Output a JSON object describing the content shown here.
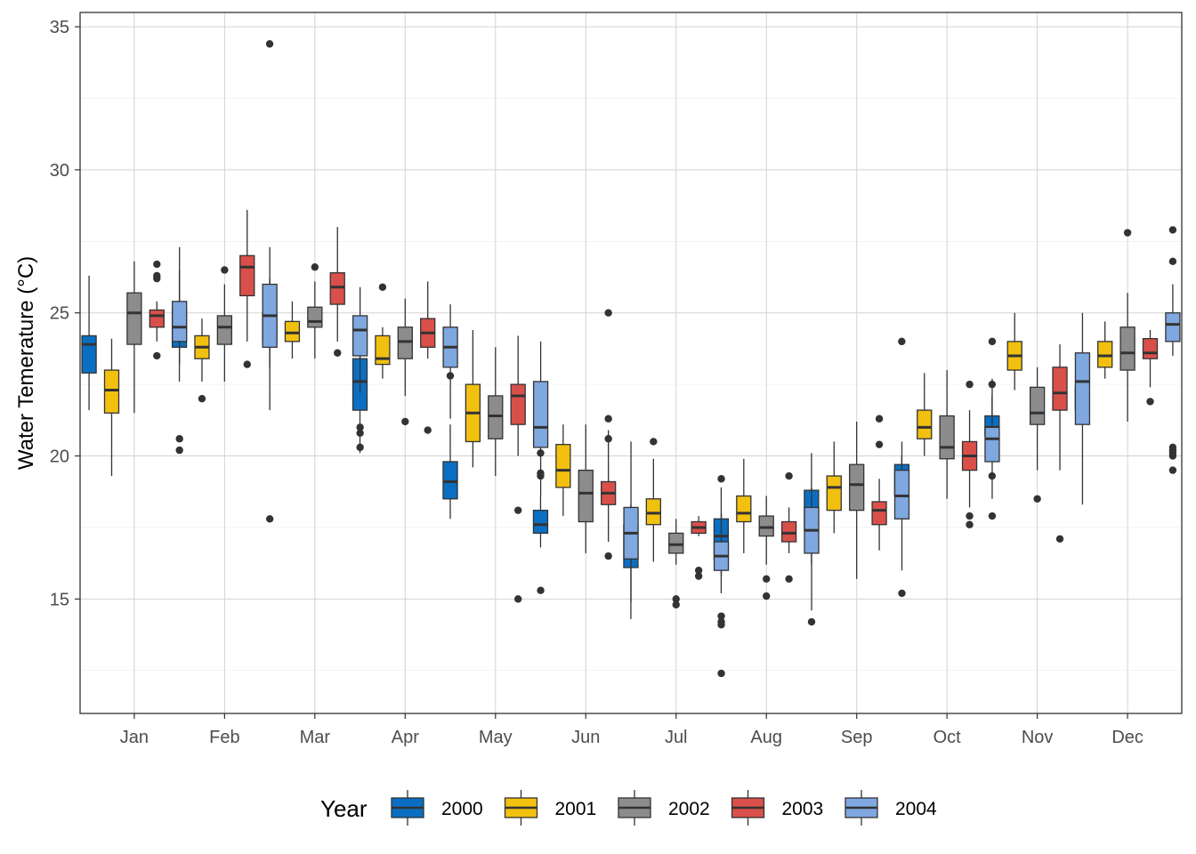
{
  "chart_data": {
    "type": "box",
    "ylabel": "Water Temerature (°C)",
    "xlabel": "",
    "ylim": [
      11,
      35.5
    ],
    "yticks": [
      15,
      20,
      25,
      30,
      35
    ],
    "grid": true,
    "legend": {
      "title": "Year",
      "position": "bottom"
    },
    "categories": [
      "Jan",
      "Feb",
      "Mar",
      "Apr",
      "May",
      "Jun",
      "Jul",
      "Aug",
      "Sep",
      "Oct",
      "Nov",
      "Dec"
    ],
    "series": [
      {
        "name": "2000",
        "color": "#0a6fc2",
        "boxes": [
          {
            "whisker_low": 21.6,
            "q1": 22.9,
            "median": 23.9,
            "q3": 24.2,
            "whisker_high": 26.3,
            "outliers": []
          },
          {
            "whisker_low": 22.6,
            "q1": 23.8,
            "median": 24.6,
            "q3": 25.1,
            "whisker_high": 26.5,
            "outliers": []
          },
          {
            "whisker_low": 23.1,
            "q1": 24.0,
            "median": 24.4,
            "q3": 25.0,
            "whisker_high": 26.2,
            "outliers": [
              34.4
            ]
          },
          {
            "whisker_low": 20.1,
            "q1": 21.6,
            "median": 22.6,
            "q3": 23.4,
            "whisker_high": 24.3,
            "outliers": []
          },
          {
            "whisker_low": 17.8,
            "q1": 18.5,
            "median": 19.1,
            "q3": 19.8,
            "whisker_high": 21.1,
            "outliers": [
              22.8
            ]
          },
          {
            "whisker_low": 16.8,
            "q1": 17.3,
            "median": 17.6,
            "q3": 18.1,
            "whisker_high": 18.6,
            "outliers": [
              20.1,
              19.4,
              19.3
            ]
          },
          {
            "whisker_low": 14.3,
            "q1": 16.1,
            "median": 16.8,
            "q3": 17.6,
            "whisker_high": 18.3,
            "outliers": []
          },
          {
            "whisker_low": 15.2,
            "q1": 16.4,
            "median": 17.2,
            "q3": 17.8,
            "whisker_high": 18.9,
            "outliers": []
          },
          {
            "whisker_low": 16.2,
            "q1": 17.4,
            "median": 18.0,
            "q3": 18.8,
            "whisker_high": 20.1,
            "outliers": []
          },
          {
            "whisker_low": 17.9,
            "q1": 18.6,
            "median": 19.2,
            "q3": 19.7,
            "whisker_high": 20.0,
            "outliers": [
              24.0
            ]
          },
          {
            "whisker_low": 20.1,
            "q1": 20.7,
            "median": 21.0,
            "q3": 21.4,
            "whisker_high": 22.1,
            "outliers": [
              22.5,
              19.3
            ]
          },
          {
            "whisker_low": 21.2,
            "q1": 21.6,
            "median": 22.1,
            "q3": 22.4,
            "whisker_high": 23.2,
            "outliers": []
          }
        ]
      },
      {
        "name": "2001",
        "color": "#f2c00f",
        "boxes": [
          {
            "whisker_low": 19.3,
            "q1": 21.5,
            "median": 22.3,
            "q3": 23.0,
            "whisker_high": 24.1,
            "outliers": []
          },
          {
            "whisker_low": 22.6,
            "q1": 23.4,
            "median": 23.8,
            "q3": 24.2,
            "whisker_high": 24.8,
            "outliers": [
              22.0
            ]
          },
          {
            "whisker_low": 23.4,
            "q1": 24.0,
            "median": 24.3,
            "q3": 24.7,
            "whisker_high": 25.4,
            "outliers": []
          },
          {
            "whisker_low": 22.7,
            "q1": 23.2,
            "median": 23.4,
            "q3": 24.2,
            "whisker_high": 24.5,
            "outliers": [
              25.9
            ]
          },
          {
            "whisker_low": 19.6,
            "q1": 20.5,
            "median": 21.5,
            "q3": 22.5,
            "whisker_high": 24.4,
            "outliers": []
          },
          {
            "whisker_low": 17.9,
            "q1": 18.9,
            "median": 19.5,
            "q3": 20.4,
            "whisker_high": 21.1,
            "outliers": []
          },
          {
            "whisker_low": 16.3,
            "q1": 17.6,
            "median": 18.0,
            "q3": 18.5,
            "whisker_high": 19.9,
            "outliers": [
              20.5
            ]
          },
          {
            "whisker_low": 16.6,
            "q1": 17.7,
            "median": 18.0,
            "q3": 18.6,
            "whisker_high": 19.9,
            "outliers": []
          },
          {
            "whisker_low": 17.3,
            "q1": 18.1,
            "median": 18.9,
            "q3": 19.3,
            "whisker_high": 20.5,
            "outliers": []
          },
          {
            "whisker_low": 20.0,
            "q1": 20.6,
            "median": 21.0,
            "q3": 21.6,
            "whisker_high": 22.9,
            "outliers": []
          },
          {
            "whisker_low": 22.3,
            "q1": 23.0,
            "median": 23.5,
            "q3": 24.0,
            "whisker_high": 25.0,
            "outliers": []
          },
          {
            "whisker_low": 22.7,
            "q1": 23.1,
            "median": 23.5,
            "q3": 24.0,
            "whisker_high": 24.7,
            "outliers": []
          }
        ]
      },
      {
        "name": "2002",
        "color": "#8c8c8c",
        "boxes": [
          {
            "whisker_low": 21.5,
            "q1": 23.9,
            "median": 25.0,
            "q3": 25.7,
            "whisker_high": 26.8,
            "outliers": []
          },
          {
            "whisker_low": 22.6,
            "q1": 23.9,
            "median": 24.5,
            "q3": 24.9,
            "whisker_high": 26.0,
            "outliers": [
              26.5
            ]
          },
          {
            "whisker_low": 23.4,
            "q1": 24.5,
            "median": 24.7,
            "q3": 25.2,
            "whisker_high": 26.1,
            "outliers": [
              26.6
            ]
          },
          {
            "whisker_low": 22.1,
            "q1": 23.4,
            "median": 24.0,
            "q3": 24.5,
            "whisker_high": 25.5,
            "outliers": [
              21.2
            ]
          },
          {
            "whisker_low": 19.3,
            "q1": 20.6,
            "median": 21.4,
            "q3": 22.1,
            "whisker_high": 23.8,
            "outliers": []
          },
          {
            "whisker_low": 16.6,
            "q1": 17.7,
            "median": 18.7,
            "q3": 19.5,
            "whisker_high": 21.1,
            "outliers": []
          },
          {
            "whisker_low": 16.2,
            "q1": 16.6,
            "median": 16.9,
            "q3": 17.3,
            "whisker_high": 17.8,
            "outliers": [
              15.0,
              14.8
            ]
          },
          {
            "whisker_low": 16.2,
            "q1": 17.2,
            "median": 17.5,
            "q3": 17.9,
            "whisker_high": 18.6,
            "outliers": [
              15.7,
              15.1
            ]
          },
          {
            "whisker_low": 15.7,
            "q1": 18.1,
            "median": 19.0,
            "q3": 19.7,
            "whisker_high": 21.2,
            "outliers": []
          },
          {
            "whisker_low": 18.5,
            "q1": 19.9,
            "median": 20.3,
            "q3": 21.4,
            "whisker_high": 23.0,
            "outliers": []
          },
          {
            "whisker_low": 19.5,
            "q1": 21.1,
            "median": 21.5,
            "q3": 22.4,
            "whisker_high": 23.1,
            "outliers": [
              18.5
            ]
          },
          {
            "whisker_low": 21.2,
            "q1": 23.0,
            "median": 23.6,
            "q3": 24.5,
            "whisker_high": 25.7,
            "outliers": [
              27.8
            ]
          }
        ]
      },
      {
        "name": "2003",
        "color": "#d9504a",
        "boxes": [
          {
            "whisker_low": 24.0,
            "q1": 24.5,
            "median": 24.9,
            "q3": 25.1,
            "whisker_high": 25.4,
            "outliers": [
              26.7,
              26.3,
              26.2,
              23.5
            ]
          },
          {
            "whisker_low": 24.0,
            "q1": 25.6,
            "median": 26.6,
            "q3": 27.0,
            "whisker_high": 28.6,
            "outliers": [
              23.2
            ]
          },
          {
            "whisker_low": 24.0,
            "q1": 25.3,
            "median": 25.9,
            "q3": 26.4,
            "whisker_high": 28.0,
            "outliers": [
              23.6
            ]
          },
          {
            "whisker_low": 23.4,
            "q1": 23.8,
            "median": 24.3,
            "q3": 24.8,
            "whisker_high": 26.1,
            "outliers": [
              20.9
            ]
          },
          {
            "whisker_low": 20.0,
            "q1": 21.1,
            "median": 22.1,
            "q3": 22.5,
            "whisker_high": 24.2,
            "outliers": [
              18.1,
              15.0
            ]
          },
          {
            "whisker_low": 17.0,
            "q1": 18.3,
            "median": 18.7,
            "q3": 19.1,
            "whisker_high": 20.9,
            "outliers": [
              25.0,
              21.3,
              20.6,
              16.5
            ]
          },
          {
            "whisker_low": 17.2,
            "q1": 17.3,
            "median": 17.5,
            "q3": 17.7,
            "whisker_high": 17.9,
            "outliers": [
              16.0,
              15.8
            ]
          },
          {
            "whisker_low": 16.6,
            "q1": 17.0,
            "median": 17.3,
            "q3": 17.7,
            "whisker_high": 18.2,
            "outliers": [
              19.3,
              15.7
            ]
          },
          {
            "whisker_low": 16.7,
            "q1": 17.6,
            "median": 18.1,
            "q3": 18.4,
            "whisker_high": 19.2,
            "outliers": [
              21.3,
              20.4
            ]
          },
          {
            "whisker_low": 18.2,
            "q1": 19.5,
            "median": 20.0,
            "q3": 20.5,
            "whisker_high": 21.6,
            "outliers": [
              22.5,
              17.9,
              17.6
            ]
          },
          {
            "whisker_low": 19.5,
            "q1": 21.6,
            "median": 22.2,
            "q3": 23.1,
            "whisker_high": 23.9,
            "outliers": [
              17.1
            ]
          },
          {
            "whisker_low": 22.4,
            "q1": 23.4,
            "median": 23.6,
            "q3": 24.1,
            "whisker_high": 24.4,
            "outliers": [
              21.9
            ]
          }
        ]
      },
      {
        "name": "2004",
        "color": "#7fa7e0",
        "boxes": [
          {
            "whisker_low": 23.2,
            "q1": 24.0,
            "median": 24.5,
            "q3": 25.4,
            "whisker_high": 27.3,
            "outliers": [
              20.6,
              20.2
            ]
          },
          {
            "whisker_low": 21.6,
            "q1": 23.8,
            "median": 24.9,
            "q3": 26.0,
            "whisker_high": 27.3,
            "outliers": [
              17.8
            ]
          },
          {
            "whisker_low": 22.2,
            "q1": 23.5,
            "median": 24.4,
            "q3": 24.9,
            "whisker_high": 25.9,
            "outliers": [
              21.0,
              20.8,
              20.3
            ]
          },
          {
            "whisker_low": 21.3,
            "q1": 23.1,
            "median": 23.8,
            "q3": 24.5,
            "whisker_high": 25.3,
            "outliers": []
          },
          {
            "whisker_low": 18.6,
            "q1": 20.3,
            "median": 21.0,
            "q3": 22.6,
            "whisker_high": 24.0,
            "outliers": [
              15.3
            ]
          },
          {
            "whisker_low": 14.9,
            "q1": 16.4,
            "median": 17.3,
            "q3": 18.2,
            "whisker_high": 20.5,
            "outliers": []
          },
          {
            "whisker_low": 15.8,
            "q1": 16.0,
            "median": 16.5,
            "q3": 17.0,
            "whisker_high": 18.0,
            "outliers": [
              19.2,
              14.4,
              14.2,
              14.1,
              12.4
            ]
          },
          {
            "whisker_low": 14.6,
            "q1": 16.6,
            "median": 17.4,
            "q3": 18.2,
            "whisker_high": 18.9,
            "outliers": [
              14.2
            ]
          },
          {
            "whisker_low": 16.0,
            "q1": 17.8,
            "median": 18.6,
            "q3": 19.5,
            "whisker_high": 20.5,
            "outliers": [
              15.2
            ]
          },
          {
            "whisker_low": 18.5,
            "q1": 19.8,
            "median": 20.6,
            "q3": 21.0,
            "whisker_high": 22.7,
            "outliers": [
              24.0,
              17.9
            ]
          },
          {
            "whisker_low": 18.3,
            "q1": 21.1,
            "median": 22.6,
            "q3": 23.6,
            "whisker_high": 25.0,
            "outliers": []
          },
          {
            "whisker_low": 23.5,
            "q1": 24.0,
            "median": 24.6,
            "q3": 25.0,
            "whisker_high": 26.0,
            "outliers": [
              27.9,
              26.8,
              20.3,
              20.2,
              20.1,
              20.0,
              19.5
            ]
          }
        ]
      }
    ]
  }
}
